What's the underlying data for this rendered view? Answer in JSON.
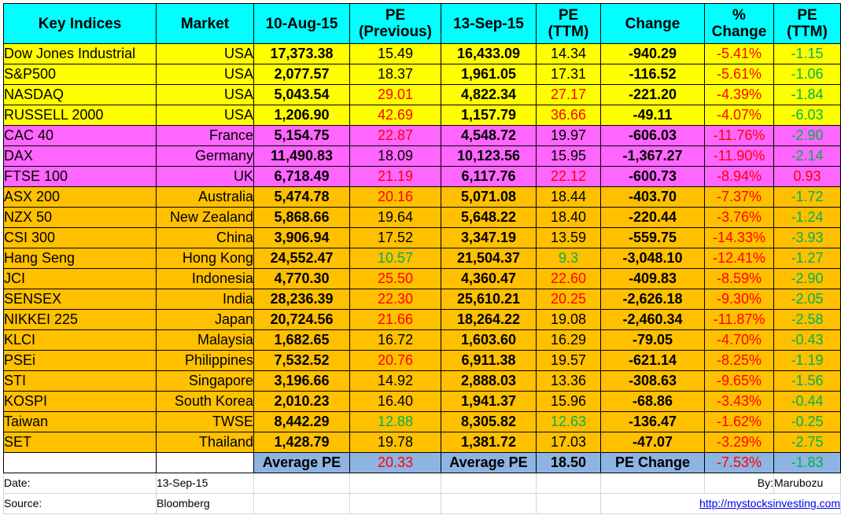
{
  "headers": [
    "Key Indices",
    "Market",
    "10-Aug-15",
    "PE (Previous)",
    "13-Sep-15",
    "PE (TTM)",
    "Change",
    "% Change",
    "PE (TTM)"
  ],
  "rows": [
    {
      "name": "Dow Jones Industrial",
      "market": "USA",
      "aug": "17,373.38",
      "pe_prev": "15.49",
      "sep": "16,433.09",
      "pe_ttm": "14.34",
      "change": "-940.29",
      "pct": "-5.41%",
      "pe_chg": "-1.15",
      "band": "yellow",
      "prev_red": false,
      "ttm_red": false,
      "prev_green": false,
      "ttm_green": false,
      "pe_chg_red": false
    },
    {
      "name": "S&P500",
      "market": "USA",
      "aug": "2,077.57",
      "pe_prev": "18.37",
      "sep": "1,961.05",
      "pe_ttm": "17.31",
      "change": "-116.52",
      "pct": "-5.61%",
      "pe_chg": "-1.06",
      "band": "yellow",
      "prev_red": false,
      "ttm_red": false,
      "prev_green": false,
      "ttm_green": false,
      "pe_chg_red": false
    },
    {
      "name": "NASDAQ",
      "market": "USA",
      "aug": "5,043.54",
      "pe_prev": "29.01",
      "sep": "4,822.34",
      "pe_ttm": "27.17",
      "change": "-221.20",
      "pct": "-4.39%",
      "pe_chg": "-1.84",
      "band": "yellow",
      "prev_red": true,
      "ttm_red": true,
      "prev_green": false,
      "ttm_green": false,
      "pe_chg_red": false
    },
    {
      "name": "RUSSELL 2000",
      "market": "USA",
      "aug": "1,206.90",
      "pe_prev": "42.69",
      "sep": "1,157.79",
      "pe_ttm": "36.66",
      "change": "-49.11",
      "pct": "-4.07%",
      "pe_chg": "-6.03",
      "band": "yellow",
      "prev_red": true,
      "ttm_red": true,
      "prev_green": false,
      "ttm_green": false,
      "pe_chg_red": false
    },
    {
      "name": "CAC 40",
      "market": "France",
      "aug": "5,154.75",
      "pe_prev": "22.87",
      "sep": "4,548.72",
      "pe_ttm": "19.97",
      "change": "-606.03",
      "pct": "-11.76%",
      "pe_chg": "-2.90",
      "band": "magenta",
      "prev_red": true,
      "ttm_red": false,
      "prev_green": false,
      "ttm_green": false,
      "pe_chg_red": false
    },
    {
      "name": "DAX",
      "market": "Germany",
      "aug": "11,490.83",
      "pe_prev": "18.09",
      "sep": "10,123.56",
      "pe_ttm": "15.95",
      "change": "-1,367.27",
      "pct": "-11.90%",
      "pe_chg": "-2.14",
      "band": "magenta",
      "prev_red": false,
      "ttm_red": false,
      "prev_green": false,
      "ttm_green": false,
      "pe_chg_red": false
    },
    {
      "name": "FTSE 100",
      "market": "UK",
      "aug": "6,718.49",
      "pe_prev": "21.19",
      "sep": "6,117.76",
      "pe_ttm": "22.12",
      "change": "-600.73",
      "pct": "-8.94%",
      "pe_chg": "0.93",
      "band": "magenta",
      "prev_red": true,
      "ttm_red": true,
      "prev_green": false,
      "ttm_green": false,
      "pe_chg_red": true
    },
    {
      "name": "ASX 200",
      "market": "Australia",
      "aug": "5,474.78",
      "pe_prev": "20.16",
      "sep": "5,071.08",
      "pe_ttm": "18.44",
      "change": "-403.70",
      "pct": "-7.37%",
      "pe_chg": "-1.72",
      "band": "orange",
      "prev_red": true,
      "ttm_red": false,
      "prev_green": false,
      "ttm_green": false,
      "pe_chg_red": false
    },
    {
      "name": "NZX 50",
      "market": "New Zealand",
      "aug": "5,868.66",
      "pe_prev": "19.64",
      "sep": "5,648.22",
      "pe_ttm": "18.40",
      "change": "-220.44",
      "pct": "-3.76%",
      "pe_chg": "-1.24",
      "band": "orange",
      "prev_red": false,
      "ttm_red": false,
      "prev_green": false,
      "ttm_green": false,
      "pe_chg_red": false
    },
    {
      "name": "CSI 300",
      "market": "China",
      "aug": "3,906.94",
      "pe_prev": "17.52",
      "sep": "3,347.19",
      "pe_ttm": "13.59",
      "change": "-559.75",
      "pct": "-14.33%",
      "pe_chg": "-3.93",
      "band": "orange",
      "prev_red": false,
      "ttm_red": false,
      "prev_green": false,
      "ttm_green": false,
      "pe_chg_red": false
    },
    {
      "name": "Hang Seng",
      "market": "Hong Kong",
      "aug": "24,552.47",
      "pe_prev": "10.57",
      "sep": "21,504.37",
      "pe_ttm": "9.3",
      "change": "-3,048.10",
      "pct": "-12.41%",
      "pe_chg": "-1.27",
      "band": "orange",
      "prev_red": false,
      "ttm_red": false,
      "prev_green": true,
      "ttm_green": true,
      "pe_chg_red": false
    },
    {
      "name": "JCI",
      "market": "Indonesia",
      "aug": "4,770.30",
      "pe_prev": "25.50",
      "sep": "4,360.47",
      "pe_ttm": "22.60",
      "change": "-409.83",
      "pct": "-8.59%",
      "pe_chg": "-2.90",
      "band": "orange",
      "prev_red": true,
      "ttm_red": true,
      "prev_green": false,
      "ttm_green": false,
      "pe_chg_red": false
    },
    {
      "name": "SENSEX",
      "market": "India",
      "aug": "28,236.39",
      "pe_prev": "22.30",
      "sep": "25,610.21",
      "pe_ttm": "20.25",
      "change": "-2,626.18",
      "pct": "-9.30%",
      "pe_chg": "-2.05",
      "band": "orange",
      "prev_red": true,
      "ttm_red": true,
      "prev_green": false,
      "ttm_green": false,
      "pe_chg_red": false
    },
    {
      "name": "NIKKEI 225",
      "market": "Japan",
      "aug": "20,724.56",
      "pe_prev": "21.66",
      "sep": "18,264.22",
      "pe_ttm": "19.08",
      "change": "-2,460.34",
      "pct": "-11.87%",
      "pe_chg": "-2.58",
      "band": "orange",
      "prev_red": true,
      "ttm_red": false,
      "prev_green": false,
      "ttm_green": false,
      "pe_chg_red": false
    },
    {
      "name": "KLCI",
      "market": "Malaysia",
      "aug": "1,682.65",
      "pe_prev": "16.72",
      "sep": "1,603.60",
      "pe_ttm": "16.29",
      "change": "-79.05",
      "pct": "-4.70%",
      "pe_chg": "-0.43",
      "band": "orange",
      "prev_red": false,
      "ttm_red": false,
      "prev_green": false,
      "ttm_green": false,
      "pe_chg_red": false
    },
    {
      "name": "PSEi",
      "market": "Philippines",
      "aug": "7,532.52",
      "pe_prev": "20.76",
      "sep": "6,911.38",
      "pe_ttm": "19.57",
      "change": "-621.14",
      "pct": "-8.25%",
      "pe_chg": "-1.19",
      "band": "orange",
      "prev_red": true,
      "ttm_red": false,
      "prev_green": false,
      "ttm_green": false,
      "pe_chg_red": false
    },
    {
      "name": "STI",
      "market": "Singapore",
      "aug": "3,196.66",
      "pe_prev": "14.92",
      "sep": "2,888.03",
      "pe_ttm": "13.36",
      "change": "-308.63",
      "pct": "-9.65%",
      "pe_chg": "-1.56",
      "band": "orange",
      "prev_red": false,
      "ttm_red": false,
      "prev_green": false,
      "ttm_green": false,
      "pe_chg_red": false
    },
    {
      "name": "KOSPI",
      "market": "South Korea",
      "aug": "2,010.23",
      "pe_prev": "16.40",
      "sep": "1,941.37",
      "pe_ttm": "15.96",
      "change": "-68.86",
      "pct": "-3.43%",
      "pe_chg": "-0.44",
      "band": "orange",
      "prev_red": false,
      "ttm_red": false,
      "prev_green": false,
      "ttm_green": false,
      "pe_chg_red": false
    },
    {
      "name": "Taiwan",
      "market": "TWSE",
      "aug": "8,442.29",
      "pe_prev": "12.88",
      "sep": "8,305.82",
      "pe_ttm": "12.63",
      "change": "-136.47",
      "pct": "-1.62%",
      "pe_chg": "-0.25",
      "band": "orange",
      "prev_red": false,
      "ttm_red": false,
      "prev_green": true,
      "ttm_green": true,
      "pe_chg_red": false
    },
    {
      "name": "SET",
      "market": "Thailand",
      "aug": "1,428.79",
      "pe_prev": "19.78",
      "sep": "1,381.72",
      "pe_ttm": "17.03",
      "change": "-47.07",
      "pct": "-3.29%",
      "pe_chg": "-2.75",
      "band": "orange",
      "prev_red": false,
      "ttm_red": false,
      "prev_green": false,
      "ttm_green": false,
      "pe_chg_red": false
    }
  ],
  "average": {
    "label_prev": "Average PE",
    "value_prev": "20.33",
    "label_ttm": "Average PE",
    "value_ttm": "18.50",
    "label_change": "PE Change",
    "pct_change": "-7.53%",
    "pe_change": "-1.83"
  },
  "footer": {
    "date_label": "Date:",
    "date_value": "13-Sep-15",
    "by_label": "By:",
    "by_value": "Marubozu",
    "source_label": "Source:",
    "source_value": "Bloomberg",
    "link": "http://mystocksinvesting.com"
  },
  "colors": {
    "header": "#00ffff",
    "usa": "#ffff00",
    "europe": "#ff66ff",
    "asia": "#ffc000",
    "average": "#8db4e2",
    "negative": "#ff0000",
    "positive_pe": "#00b050"
  }
}
